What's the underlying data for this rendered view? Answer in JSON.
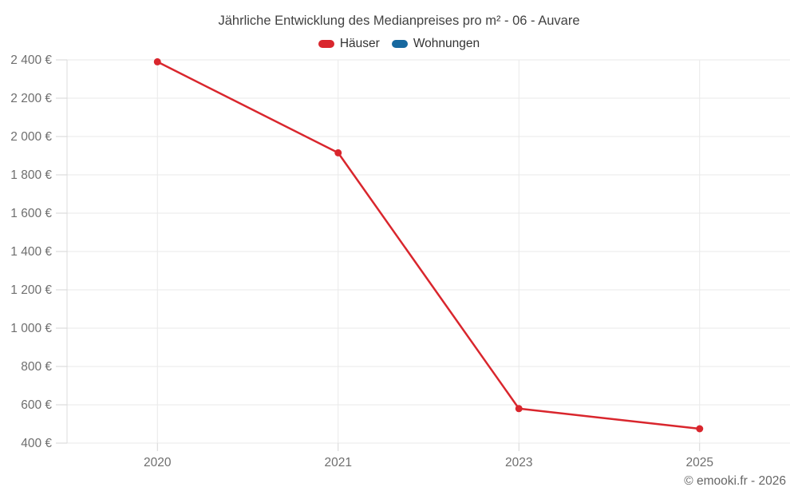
{
  "title": "Jährliche Entwicklung des Medianpreises pro m² - 06 - Auvare",
  "legend": {
    "items": [
      {
        "label": "Häuser",
        "color": "#d9262d"
      },
      {
        "label": "Wohnungen",
        "color": "#17689f"
      }
    ]
  },
  "attribution": "© emooki.fr - 2026",
  "chart_data": {
    "type": "line",
    "title": "Jährliche Entwicklung des Medianpreises pro m² - 06 - Auvare",
    "categories": [
      "2020",
      "2021",
      "2023",
      "2025"
    ],
    "series": [
      {
        "name": "Häuser",
        "color": "#d9262d",
        "values": [
          2390,
          1915,
          580,
          475
        ]
      },
      {
        "name": "Wohnungen",
        "color": "#17689f",
        "values": []
      }
    ],
    "xlabel": "",
    "ylabel": "",
    "ytick_suffix": " €",
    "ylim": [
      400,
      2400
    ],
    "ytick_step": 200,
    "grid": true,
    "legend_position": "top",
    "marker": "circle"
  }
}
